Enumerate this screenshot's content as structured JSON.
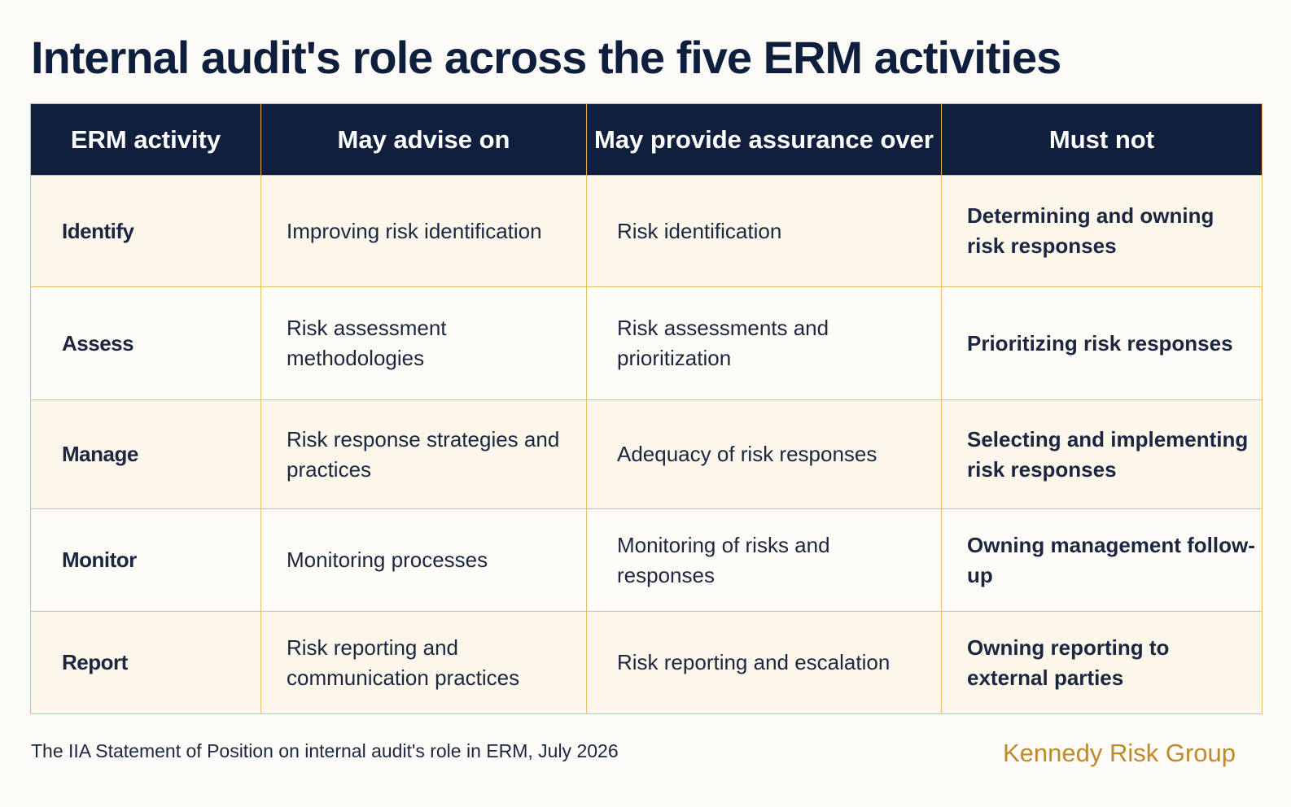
{
  "title": "Internal audit's role across the five ERM activities",
  "table": {
    "headers": [
      "ERM activity",
      "May advise on",
      "May provide assurance over",
      "Must not"
    ],
    "rows": [
      {
        "activity": "Identify",
        "advise": "Improving risk identification",
        "assurance": "Risk identification",
        "must_not": "Determining and owning risk responses"
      },
      {
        "activity": "Assess",
        "advise": "Risk assessment methodologies",
        "assurance": "Risk assessments and prioritization",
        "must_not": "Prioritizing risk responses"
      },
      {
        "activity": "Manage",
        "advise": "Risk response strategies and practices",
        "assurance": "Adequacy of risk responses",
        "must_not": "Selecting and implementing risk responses"
      },
      {
        "activity": "Monitor",
        "advise": "Monitoring processes",
        "assurance": "Monitoring of risks and responses",
        "must_not": "Owning management follow-up"
      },
      {
        "activity": "Report",
        "advise": "Risk reporting and communication practices",
        "assurance": "Risk reporting and escalation",
        "must_not": "Owning reporting to external parties"
      }
    ]
  },
  "footer": {
    "source": "The IIA Statement of Position on internal audit's role in ERM, July 2026",
    "brand": "Kennedy Risk Group"
  },
  "colors": {
    "header_bg": "#0f1f3d",
    "title_text": "#0e1e3d",
    "must_not_text": "#a8721c",
    "border": "#e8bd6c",
    "brand_text": "#c08a2a"
  }
}
